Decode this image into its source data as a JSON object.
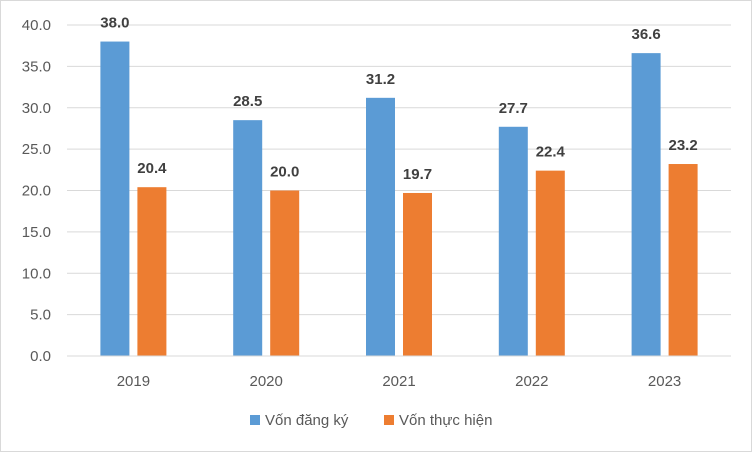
{
  "chart_data": {
    "type": "bar",
    "title": "",
    "xlabel": "",
    "ylabel": "",
    "categories": [
      "2019",
      "2020",
      "2021",
      "2022",
      "2023"
    ],
    "series": [
      {
        "name": "Vốn đăng ký",
        "color": "#5B9BD5",
        "values": [
          38.0,
          28.5,
          31.2,
          27.7,
          36.6
        ],
        "labels": [
          "38.0",
          "28.5",
          "31.2",
          "27.7",
          "36.6"
        ]
      },
      {
        "name": "Vốn thực hiện",
        "color": "#ED7D31",
        "values": [
          20.4,
          20.0,
          19.7,
          22.4,
          23.2
        ],
        "labels": [
          "20.4",
          "20.0",
          "19.7",
          "22.4",
          "23.2"
        ]
      }
    ],
    "ylim": [
      0,
      40
    ],
    "yticks": [
      "0.0",
      "5.0",
      "10.0",
      "15.0",
      "20.0",
      "25.0",
      "30.0",
      "35.0",
      "40.0"
    ],
    "grid": true,
    "legend": "bottom",
    "colors": {
      "grid": "#d9d9d9",
      "axis": "#d9d9d9"
    }
  }
}
